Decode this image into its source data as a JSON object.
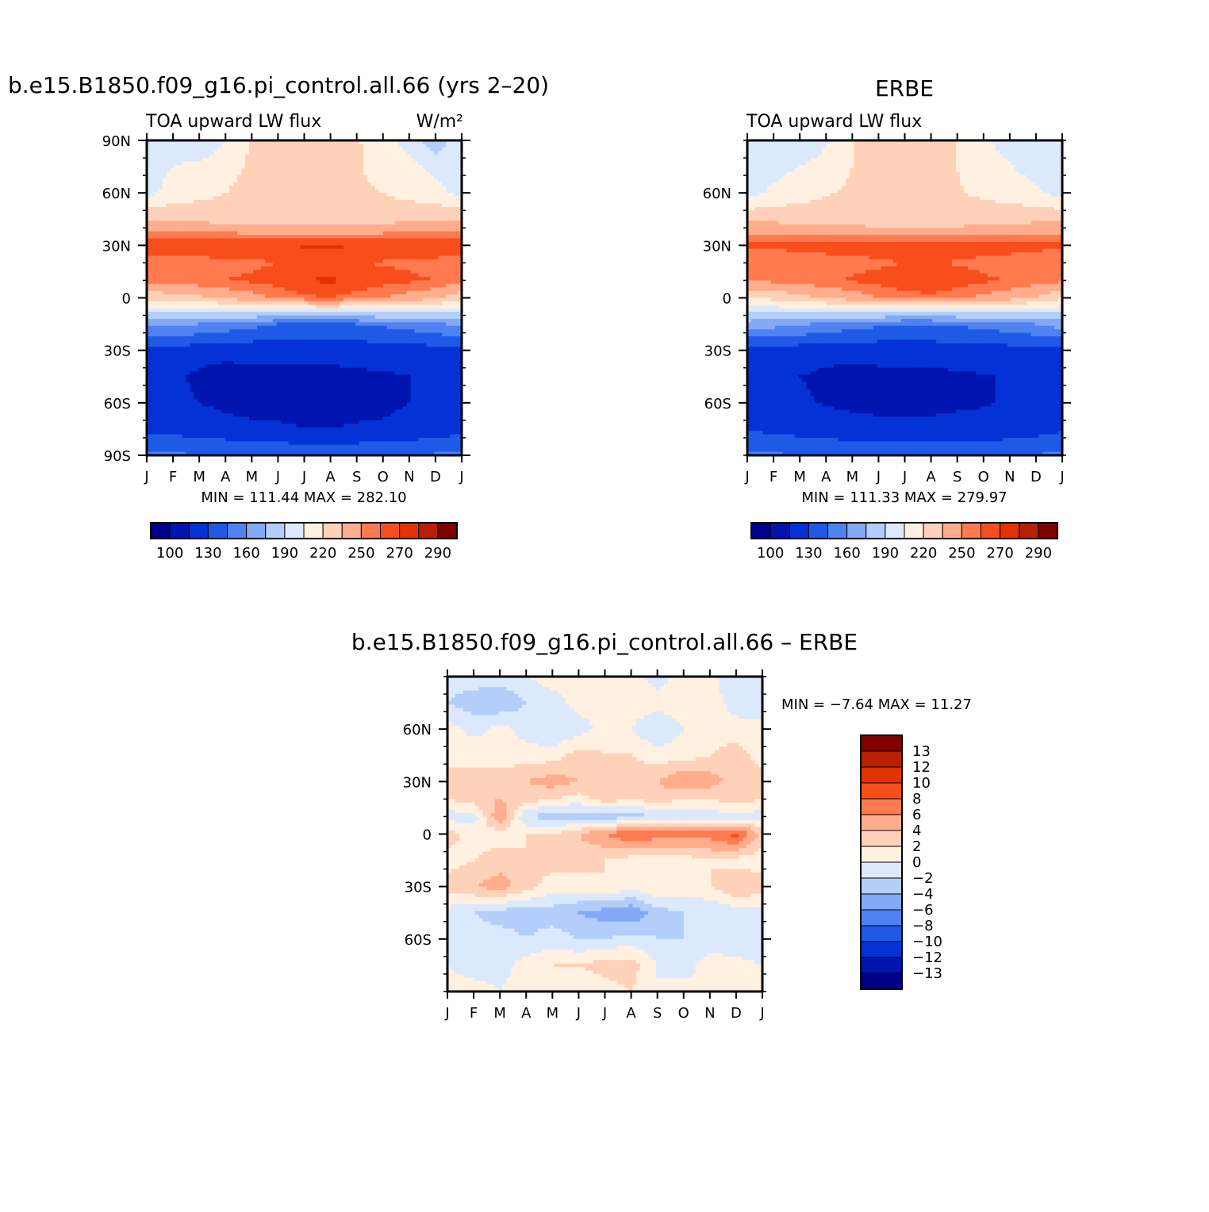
{
  "months": [
    "J",
    "F",
    "M",
    "A",
    "M",
    "J",
    "J",
    "A",
    "S",
    "O",
    "N",
    "D",
    "J"
  ],
  "colors": {
    "abs": [
      "#00008b",
      "#0015b0",
      "#0432d6",
      "#1e5ae6",
      "#4f82f2",
      "#82aaf6",
      "#b3cefa",
      "#dce9fc",
      "#fff0e0",
      "#ffd1b8",
      "#ffad8c",
      "#ff7a4f",
      "#f84e1c",
      "#e23300",
      "#b92000",
      "#800000"
    ],
    "diff": [
      "#00008b",
      "#0015b0",
      "#0432d6",
      "#1e5ae6",
      "#4f82f2",
      "#82aaf6",
      "#b3cefa",
      "#dce9fc",
      "#fff0e0",
      "#ffd1b8",
      "#ffad8c",
      "#ff7a4f",
      "#f84e1c",
      "#e23300",
      "#b92000",
      "#800000"
    ]
  },
  "chart_data": [
    {
      "type": "heatmap",
      "title": "b.e15.B1850.f09_g16.pi_control.all.66 (yrs 2–20)",
      "left_label": "TOA upward LW flux",
      "units_label": "W/m²",
      "y_ticks": [
        "90N",
        "60N",
        "30N",
        "0",
        "30S",
        "60S",
        "90S"
      ],
      "y_tick_lats": [
        90,
        60,
        30,
        0,
        -30,
        -60,
        -90
      ],
      "ylim": [
        -90,
        90
      ],
      "stats_text": "MIN = 111.44 MAX = 282.10",
      "min": 111.44,
      "max": 282.1,
      "colorbar_labels": [
        "100",
        "130",
        "160",
        "190",
        "220",
        "250",
        "270",
        "290"
      ],
      "lats": [
        -90,
        -75,
        -60,
        -45,
        -30,
        -15,
        0,
        10,
        20,
        30,
        45,
        60,
        75,
        90
      ],
      "values": [
        [
          150,
          125,
          120,
          120,
          125,
          165,
          225,
          255,
          250,
          270,
          235,
          200,
          200,
          200
        ],
        [
          148,
          125,
          118,
          118,
          124,
          163,
          227,
          256,
          252,
          270,
          234,
          210,
          205,
          195
        ],
        [
          145,
          122,
          115,
          112,
          121,
          160,
          232,
          258,
          255,
          270,
          231,
          215,
          210,
          190
        ],
        [
          145,
          120,
          112,
          110,
          119,
          155,
          238,
          260,
          257,
          270,
          228,
          220,
          215,
          205
        ],
        [
          143,
          118,
          110,
          110,
          120,
          150,
          245,
          262,
          258,
          270,
          226,
          224,
          222,
          222
        ],
        [
          142,
          117,
          110,
          110,
          120,
          145,
          252,
          265,
          260,
          270,
          224,
          225,
          226,
          226
        ],
        [
          142,
          115,
          111,
          110,
          121,
          142,
          258,
          270,
          262,
          271,
          222,
          224,
          227,
          228
        ],
        [
          142,
          115,
          111,
          110,
          121,
          142,
          260,
          272,
          262,
          272,
          222,
          224,
          226,
          226
        ],
        [
          142,
          116,
          112,
          112,
          122,
          145,
          255,
          268,
          261,
          270,
          224,
          222,
          222,
          222
        ],
        [
          143,
          117,
          112,
          113,
          122,
          148,
          250,
          264,
          259,
          269,
          228,
          220,
          214,
          210
        ],
        [
          144,
          119,
          115,
          115,
          123,
          152,
          244,
          262,
          258,
          269,
          232,
          215,
          210,
          200
        ],
        [
          147,
          121,
          118,
          118,
          124,
          157,
          238,
          260,
          256,
          270,
          234,
          210,
          200,
          180
        ],
        [
          150,
          125,
          120,
          120,
          125,
          165,
          225,
          255,
          250,
          270,
          235,
          200,
          200,
          200
        ]
      ]
    },
    {
      "type": "heatmap",
      "title": "ERBE",
      "left_label": "TOA upward LW flux",
      "y_ticks": [
        "60N",
        "30N",
        "0",
        "30S",
        "60S"
      ],
      "y_tick_lats": [
        60,
        30,
        0,
        -30,
        -60
      ],
      "ylim": [
        -90,
        90
      ],
      "stats_text": "MIN = 111.33 MAX = 279.97",
      "min": 111.33,
      "max": 279.97,
      "colorbar_labels": [
        "100",
        "130",
        "160",
        "190",
        "220",
        "250",
        "270",
        "290"
      ],
      "lats": [
        -90,
        -75,
        -60,
        -45,
        -30,
        -15,
        0,
        10,
        20,
        30,
        45,
        60,
        75,
        90
      ],
      "values": [
        [
          148,
          128,
          122,
          122,
          125,
          168,
          222,
          252,
          250,
          262,
          232,
          200,
          195,
          200
        ],
        [
          147,
          127,
          120,
          120,
          124,
          166,
          224,
          253,
          252,
          263,
          231,
          208,
          200,
          195
        ],
        [
          145,
          124,
          117,
          115,
          122,
          162,
          230,
          256,
          254,
          263,
          229,
          214,
          205,
          190
        ],
        [
          144,
          122,
          114,
          112,
          120,
          157,
          236,
          258,
          256,
          264,
          227,
          219,
          212,
          203
        ],
        [
          142,
          120,
          112,
          111,
          120,
          152,
          243,
          261,
          257,
          265,
          225,
          222,
          220,
          220
        ],
        [
          141,
          119,
          111,
          111,
          121,
          148,
          250,
          264,
          258,
          266,
          223,
          223,
          224,
          224
        ],
        [
          141,
          118,
          112,
          111,
          122,
          145,
          255,
          268,
          260,
          268,
          222,
          223,
          225,
          226
        ],
        [
          141,
          118,
          112,
          111,
          122,
          145,
          257,
          270,
          260,
          268,
          221,
          223,
          225,
          225
        ],
        [
          141,
          119,
          113,
          113,
          123,
          147,
          252,
          266,
          259,
          266,
          223,
          221,
          220,
          220
        ],
        [
          142,
          120,
          114,
          114,
          123,
          150,
          247,
          262,
          257,
          265,
          226,
          218,
          212,
          208
        ],
        [
          143,
          122,
          116,
          116,
          124,
          155,
          241,
          259,
          256,
          264,
          229,
          214,
          206,
          198
        ],
        [
          146,
          124,
          119,
          118,
          124,
          160,
          233,
          256,
          253,
          264,
          231,
          208,
          198,
          190
        ],
        [
          148,
          128,
          122,
          122,
          125,
          168,
          222,
          252,
          250,
          262,
          232,
          200,
          195,
          200
        ]
      ]
    },
    {
      "type": "heatmap",
      "title": "b.e15.B1850.f09_g16.pi_control.all.66 – ERBE",
      "y_ticks": [
        "60N",
        "30N",
        "0",
        "30S",
        "60S"
      ],
      "y_tick_lats": [
        60,
        30,
        0,
        -30,
        -60
      ],
      "ylim": [
        -90,
        90
      ],
      "stats_text": "MIN = −7.64 MAX = 11.27",
      "min": -7.64,
      "max": 11.27,
      "colorbar_labels": [
        "13",
        "12",
        "10",
        "8",
        "6",
        "4",
        "2",
        "0",
        "−2",
        "−4",
        "−6",
        "−8",
        "−10",
        "−12",
        "−13"
      ],
      "lats": [
        -90,
        -75,
        -60,
        -45,
        -30,
        -15,
        0,
        10,
        20,
        30,
        45,
        60,
        75,
        90
      ],
      "values": [
        [
          1,
          0,
          -2,
          -1,
          3,
          1,
          3,
          -1,
          2,
          3,
          1,
          1,
          -2,
          -1
        ],
        [
          1,
          -1,
          -1,
          -2,
          4,
          2,
          1,
          -1,
          3,
          2,
          2,
          -1,
          -3,
          -1
        ],
        [
          0,
          -1,
          -1,
          -3,
          5,
          3,
          1,
          6,
          4,
          3,
          1,
          1,
          -4,
          -1
        ],
        [
          1,
          1,
          -2,
          -3,
          3,
          2,
          2,
          -2,
          3,
          4,
          1,
          -1,
          -2,
          0
        ],
        [
          0,
          2,
          -1,
          -3,
          1,
          3,
          2,
          -3,
          2,
          5,
          1,
          -2,
          -1,
          1
        ],
        [
          0,
          2,
          -2,
          -4,
          1,
          3,
          4,
          -3,
          1,
          4,
          3,
          -1,
          1,
          0
        ],
        [
          1,
          3,
          -2,
          -5,
          2,
          2,
          6,
          -3,
          3,
          4,
          2,
          1,
          0,
          1
        ],
        [
          2,
          3,
          -1,
          -6,
          1,
          1,
          8,
          -3,
          2,
          3,
          2,
          0,
          1,
          1
        ],
        [
          0,
          0,
          -2,
          -3,
          2,
          1,
          7,
          -2,
          3,
          4,
          1,
          -2,
          1,
          -1
        ],
        [
          1,
          -1,
          -2,
          -2,
          1,
          1,
          7,
          -2,
          2,
          6,
          1,
          0,
          1,
          1
        ],
        [
          0,
          1,
          -1,
          -2,
          2,
          2,
          7,
          -1,
          2,
          5,
          2,
          1,
          1,
          1
        ],
        [
          1,
          1,
          -2,
          -1,
          4,
          1,
          9,
          -1,
          3,
          3,
          3,
          1,
          -1,
          -2
        ],
        [
          1,
          0,
          -2,
          -1,
          3,
          1,
          3,
          -1,
          2,
          3,
          1,
          1,
          -2,
          -1
        ]
      ]
    }
  ]
}
